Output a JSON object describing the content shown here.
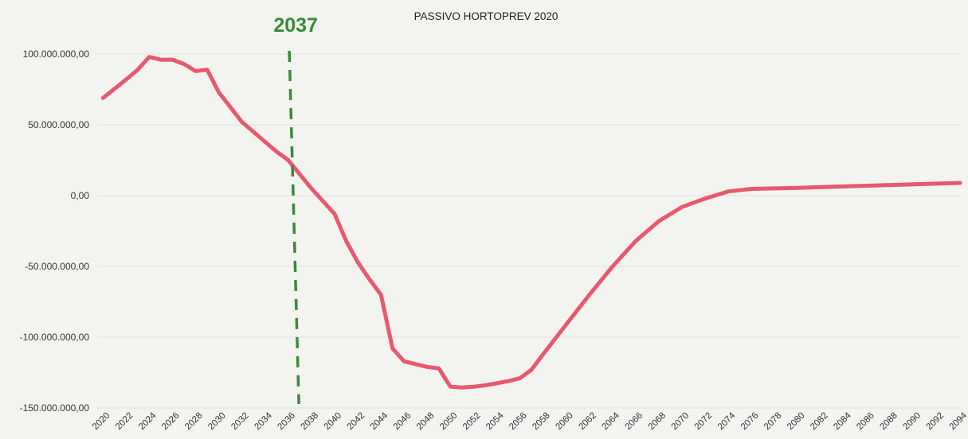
{
  "chart_data": {
    "type": "line",
    "title": "PASSIVO HORTOPREV 2020",
    "xlabel": "",
    "ylabel": "",
    "xlim": [
      2019.5,
      2094
    ],
    "ylim": [
      -150000000,
      100000000
    ],
    "grid": true,
    "legend": "none",
    "y_ticks": [
      100000000,
      50000000,
      0,
      -50000000,
      -100000000,
      -150000000
    ],
    "y_tick_labels": [
      "100.000.000,00",
      "50.000.000,00",
      "0,00",
      "-50.000.000,00",
      "-100.000.000,00",
      "-150.000.000,00"
    ],
    "x_tick_labels": [
      "2020",
      "2022",
      "2024",
      "2026",
      "2028",
      "2030",
      "2032",
      "2034",
      "2036",
      "2038",
      "2040",
      "2042",
      "2044",
      "2046",
      "2048",
      "2050",
      "2052",
      "2054",
      "2056",
      "2058",
      "2060",
      "2062",
      "2064",
      "2066",
      "2068",
      "2070",
      "2072",
      "2074",
      "2076",
      "2078",
      "2080",
      "2082",
      "2084",
      "2086",
      "2088",
      "2090",
      "2092",
      "2094"
    ],
    "marker": {
      "x": 2036.5,
      "label": "2037",
      "color": "#3a8a3a"
    },
    "series": [
      {
        "color": "#e8586f",
        "x": [
          2020,
          2022,
          2023,
          2024,
          2025,
          2026,
          2027,
          2028,
          2029,
          2030,
          2032,
          2034,
          2035,
          2036,
          2037,
          2038,
          2039,
          2040,
          2041,
          2042,
          2043,
          2044,
          2045,
          2046,
          2047,
          2048,
          2049,
          2050,
          2051,
          2052,
          2053,
          2054,
          2055,
          2056,
          2057,
          2058,
          2060,
          2062,
          2064,
          2066,
          2068,
          2070,
          2072,
          2074,
          2076,
          2080,
          2084,
          2088,
          2090,
          2092,
          2094
        ],
        "values": [
          69000000,
          82000000,
          89000000,
          98000000,
          96000000,
          96000000,
          93000000,
          88000000,
          89000000,
          73000000,
          52000000,
          38000000,
          31000000,
          25000000,
          15000000,
          5000000,
          -4000000,
          -13000000,
          -32000000,
          -47000000,
          -59000000,
          -70000000,
          -108000000,
          -117000000,
          -119000000,
          -121000000,
          -122000000,
          -135000000,
          -135500000,
          -135000000,
          -134000000,
          -132500000,
          -131000000,
          -129000000,
          -123000000,
          -112000000,
          -91000000,
          -70000000,
          -50000000,
          -32000000,
          -18000000,
          -8000000,
          -2000000,
          3000000,
          4800000,
          5500000,
          6500000,
          7500000,
          8000000,
          8500000,
          9000000
        ]
      }
    ]
  }
}
